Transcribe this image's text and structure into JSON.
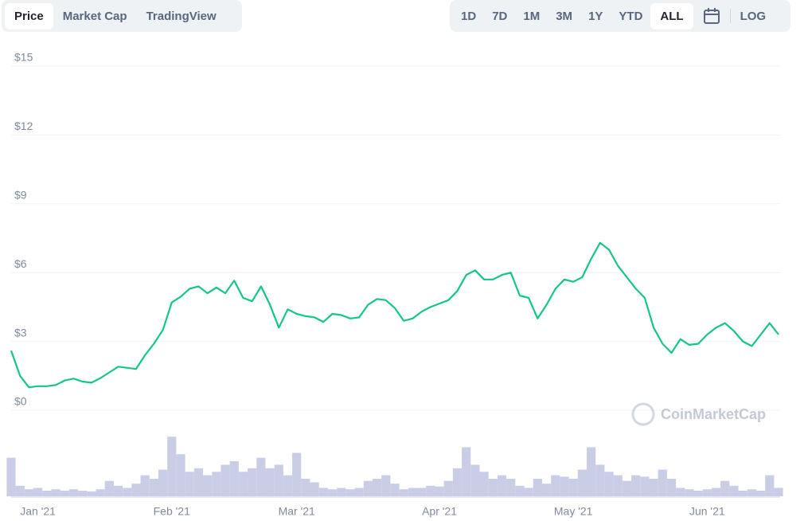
{
  "tabs": [
    "Price",
    "Market Cap",
    "TradingView"
  ],
  "ranges": [
    "1D",
    "7D",
    "1M",
    "3M",
    "1Y",
    "YTD",
    "ALL"
  ],
  "log_button": "LOG",
  "watermark": "CoinMarketCap",
  "chart_data": {
    "type": "line",
    "categories": [
      null,
      null,
      null,
      "Jan '21",
      null,
      null,
      null,
      null,
      null,
      null,
      null,
      null,
      null,
      null,
      null,
      null,
      null,
      null,
      "Feb '21",
      null,
      null,
      null,
      null,
      null,
      null,
      null,
      null,
      null,
      null,
      null,
      null,
      null,
      "Mar '21",
      null,
      null,
      null,
      null,
      null,
      null,
      null,
      null,
      null,
      null,
      null,
      null,
      null,
      null,
      null,
      "Apr '21",
      null,
      null,
      null,
      null,
      null,
      null,
      null,
      null,
      null,
      null,
      null,
      null,
      null,
      null,
      "May '21",
      null,
      null,
      null,
      null,
      null,
      null,
      null,
      null,
      null,
      null,
      null,
      null,
      null,
      null,
      "Jun '21",
      null,
      null,
      null,
      null,
      null,
      null,
      null,
      null
    ],
    "series": [
      {
        "name": "Price",
        "color": "#16c784",
        "values": [
          2.6,
          1.5,
          1.0,
          1.05,
          1.05,
          1.1,
          1.3,
          1.38,
          1.25,
          1.2,
          1.4,
          1.65,
          1.9,
          1.85,
          1.8,
          2.4,
          2.9,
          3.5,
          4.7,
          4.95,
          5.3,
          5.4,
          5.1,
          5.35,
          5.1,
          5.65,
          4.9,
          4.75,
          5.4,
          4.6,
          3.6,
          4.4,
          4.2,
          4.1,
          4.05,
          3.85,
          4.2,
          4.15,
          4.0,
          4.05,
          4.6,
          4.85,
          4.8,
          4.45,
          3.9,
          4.0,
          4.3,
          4.5,
          4.65,
          4.8,
          5.2,
          5.9,
          6.1,
          5.7,
          5.7,
          5.9,
          6.0,
          5.0,
          4.9,
          4.0,
          4.6,
          5.3,
          5.7,
          5.6,
          5.8,
          6.6,
          7.3,
          7.0,
          6.3,
          5.8,
          5.3,
          4.9,
          3.6,
          2.9,
          2.5,
          3.1,
          2.85,
          2.9,
          3.3,
          3.6,
          3.8,
          3.45,
          3.0,
          2.8,
          3.3,
          3.8,
          3.3
        ]
      },
      {
        "name": "Volume",
        "color": "#c9cde6",
        "axis": "y2",
        "values": [
          55,
          15,
          10,
          12,
          8,
          10,
          8,
          10,
          8,
          7,
          10,
          22,
          15,
          12,
          18,
          30,
          25,
          38,
          85,
          60,
          35,
          40,
          30,
          35,
          45,
          50,
          35,
          40,
          55,
          40,
          45,
          30,
          62,
          25,
          20,
          12,
          10,
          12,
          10,
          12,
          22,
          25,
          30,
          18,
          10,
          12,
          12,
          15,
          14,
          22,
          40,
          70,
          45,
          35,
          25,
          30,
          25,
          15,
          12,
          25,
          18,
          30,
          28,
          25,
          38,
          70,
          45,
          35,
          30,
          22,
          30,
          28,
          25,
          38,
          25,
          12,
          10,
          8,
          10,
          12,
          22,
          15,
          8,
          10,
          8,
          30,
          12
        ]
      }
    ],
    "ylim": [
      0,
      15
    ],
    "yticks": [
      {
        "value": 0,
        "label": "$0"
      },
      {
        "value": 3,
        "label": "$3"
      },
      {
        "value": 6,
        "label": "$6"
      },
      {
        "value": 9,
        "label": "$9"
      },
      {
        "value": 12,
        "label": "$12"
      },
      {
        "value": 15,
        "label": "$15"
      }
    ],
    "y2lim": [
      0,
      100
    ],
    "grid": true
  }
}
